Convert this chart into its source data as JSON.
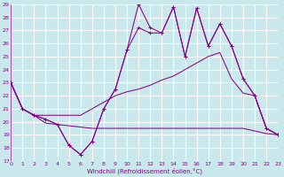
{
  "background_color": "#c8e8ec",
  "grid_color": "#ffffff",
  "line_color": "#880088",
  "xlabel": "Windchill (Refroidissement éolien,°C)",
  "ylim": [
    17,
    29
  ],
  "xlim": [
    0,
    23
  ],
  "yticks": [
    17,
    18,
    19,
    20,
    21,
    22,
    23,
    24,
    25,
    26,
    27,
    28,
    29
  ],
  "xticks": [
    0,
    1,
    2,
    3,
    4,
    5,
    6,
    7,
    8,
    9,
    10,
    11,
    12,
    13,
    14,
    15,
    16,
    17,
    18,
    19,
    20,
    21,
    22,
    23
  ],
  "line_flat_x": [
    0,
    1,
    2,
    3,
    4,
    5,
    6,
    7,
    8,
    9,
    10,
    11,
    12,
    13,
    14,
    15,
    16,
    17,
    18,
    19,
    20,
    21,
    22,
    23
  ],
  "line_flat_y": [
    23,
    21,
    20.5,
    19.9,
    19.8,
    19.7,
    19.6,
    19.5,
    19.5,
    19.5,
    19.5,
    19.5,
    19.5,
    19.5,
    19.5,
    19.5,
    19.5,
    19.5,
    19.5,
    19.5,
    19.5,
    19.3,
    19.1,
    19.0
  ],
  "line_rise_x": [
    0,
    1,
    2,
    3,
    4,
    5,
    6,
    7,
    8,
    9,
    10,
    11,
    12,
    13,
    14,
    15,
    16,
    17,
    18,
    19,
    20,
    21,
    22,
    23
  ],
  "line_rise_y": [
    23,
    21,
    20.5,
    20.5,
    20.5,
    20.5,
    20.5,
    21.0,
    21.5,
    22.0,
    22.3,
    22.5,
    22.8,
    23.2,
    23.5,
    24.0,
    24.5,
    25.0,
    25.3,
    23.3,
    22.2,
    22.0,
    19.5,
    19.0
  ],
  "line_jagged1_x": [
    0,
    1,
    2,
    3,
    4,
    5,
    6,
    7,
    8,
    9,
    10,
    11,
    12,
    13,
    14,
    15,
    16,
    17,
    18,
    19,
    20,
    21,
    22,
    23
  ],
  "line_jagged1_y": [
    23,
    21,
    20.5,
    20.2,
    19.8,
    18.2,
    17.5,
    18.5,
    21.0,
    22.5,
    25.5,
    27.2,
    26.8,
    26.8,
    28.8,
    25.0,
    28.7,
    25.8,
    27.5,
    25.8,
    23.3,
    22.0,
    19.5,
    19.0
  ],
  "line_jagged2_x": [
    0,
    1,
    2,
    3,
    4,
    5,
    6,
    7,
    8,
    9,
    10,
    11,
    12,
    13,
    14,
    15,
    16,
    17,
    18,
    19,
    20,
    21,
    22,
    23
  ],
  "line_jagged2_y": [
    23,
    21,
    20.5,
    20.2,
    19.8,
    18.2,
    17.5,
    18.5,
    21.0,
    22.5,
    25.5,
    29.0,
    27.2,
    26.8,
    28.8,
    25.0,
    28.7,
    25.8,
    27.5,
    25.8,
    23.3,
    22.0,
    19.5,
    19.0
  ]
}
